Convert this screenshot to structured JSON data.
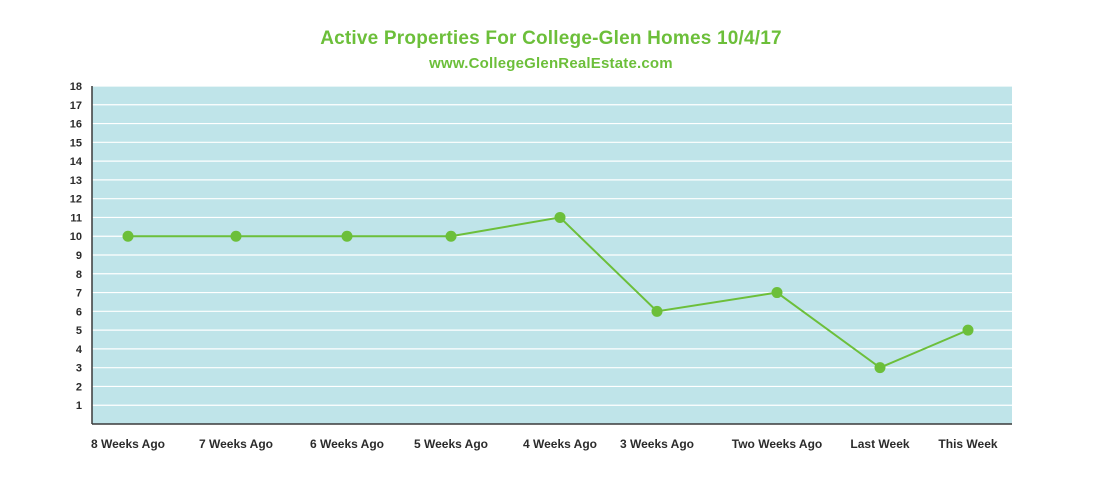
{
  "title": "Active Properties For College-Glen Homes 10/4/17",
  "subtitle": "www.CollegeGlenRealEstate.com",
  "colors": {
    "accent": "#6cbf3a",
    "plot_background": "#bfe4e9",
    "grid": "#ffffff",
    "axis": "#3a3a3a",
    "text": "#2b2b2b"
  },
  "chart_data": {
    "type": "line",
    "title": "Active Properties For College-Glen Homes 10/4/17",
    "subtitle": "www.CollegeGlenRealEstate.com",
    "categories": [
      "8 Weeks Ago",
      "7 Weeks Ago",
      "6 Weeks Ago",
      "5 Weeks Ago",
      "4 Weeks Ago",
      "3 Weeks Ago",
      "Two Weeks Ago",
      "Last Week",
      "This Week"
    ],
    "series": [
      {
        "values": [
          10,
          10,
          10,
          10,
          11,
          6,
          7,
          3,
          5
        ]
      }
    ],
    "y_ticks": [
      "1",
      "2",
      "3",
      "4",
      "5",
      "6",
      "7",
      "8",
      "9",
      "10",
      "11",
      "12",
      "13",
      "14",
      "15",
      "16",
      "17",
      "18"
    ],
    "ylim": [
      0,
      18
    ],
    "grid": true,
    "xlabel": "",
    "ylabel": ""
  }
}
